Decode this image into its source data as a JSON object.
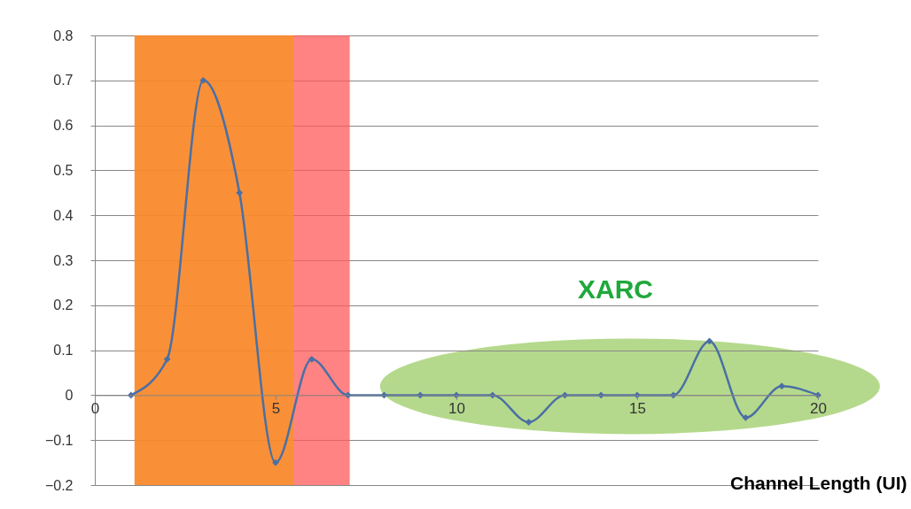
{
  "chart_data": {
    "type": "line",
    "xlabel": "Channel Length (UI)",
    "x": [
      1,
      2,
      3,
      4,
      5,
      6,
      7,
      8,
      9,
      10,
      11,
      12,
      13,
      14,
      15,
      16,
      17,
      18,
      19,
      20
    ],
    "series": [
      {
        "color": "#4a6fa5",
        "values": [
          0,
          0.08,
          0.7,
          0.45,
          -0.15,
          0.08,
          0,
          0,
          0,
          0,
          0,
          -0.06,
          0,
          0,
          0,
          0,
          0.12,
          -0.05,
          0.02,
          0
        ]
      }
    ],
    "xlim": [
      0,
      20
    ],
    "xticks": [
      0,
      5,
      10,
      15,
      20
    ],
    "ylim": [
      -0.2,
      0.8
    ],
    "yticks": [
      -0.2,
      -0.1,
      0,
      0.1,
      0.2,
      0.3,
      0.4,
      0.5,
      0.6,
      0.7,
      0.8
    ],
    "grid": "y",
    "marker": "diamond",
    "bands": [
      {
        "axis": "x",
        "from": 1.1,
        "to": 7.05,
        "color": "#ff5a5a"
      },
      {
        "axis": "x",
        "from": 1.1,
        "to": 5.5,
        "color": "#f7941d"
      }
    ],
    "annotations": [
      "XARC"
    ]
  }
}
